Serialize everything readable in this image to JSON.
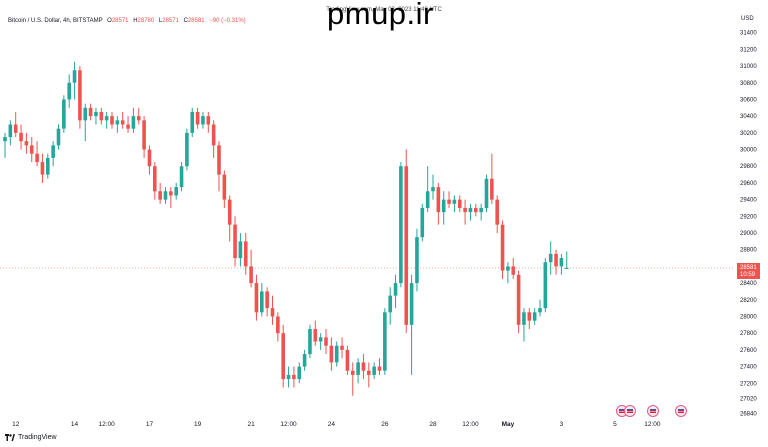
{
  "header": {
    "source_line": "TradingView.com, May 03, 2023 11:49 UTC",
    "watermark": "pmup.ir",
    "symbol": "Bitcoin / U.S. Dollar, 4h, BITSTAMP",
    "ohlc": {
      "o_label": "O",
      "o_value": "28571",
      "h_label": "H",
      "h_value": "28780",
      "l_label": "L",
      "l_value": "28571",
      "c_label": "C",
      "c_value": "28581",
      "change": "−90 (−0.31%)"
    },
    "currency": "USD"
  },
  "footer": {
    "brand": "TradingView"
  },
  "colors": {
    "up": "#26a69a",
    "down": "#ef5350",
    "priceline": "#f28b8b"
  },
  "chart_data": {
    "type": "candlestick",
    "y_axis": {
      "ticks": [
        26840,
        27020,
        27200,
        27400,
        27600,
        27800,
        28000,
        28200,
        28400,
        28600,
        28800,
        29000,
        29200,
        29400,
        29600,
        29800,
        30000,
        30200,
        30400,
        30600,
        30800,
        31000,
        31200,
        31400
      ],
      "ylim": [
        26760,
        31480
      ]
    },
    "x_axis": {
      "ticks": [
        {
          "label": "12",
          "index": 2
        },
        {
          "label": "14",
          "index": 13
        },
        {
          "label": "12:00",
          "index": 19
        },
        {
          "label": "17",
          "index": 27
        },
        {
          "label": "19",
          "index": 36
        },
        {
          "label": "21",
          "index": 46
        },
        {
          "label": "12:00",
          "index": 53
        },
        {
          "label": "24",
          "index": 61
        },
        {
          "label": "26",
          "index": 71
        },
        {
          "label": "28",
          "index": 80
        },
        {
          "label": "12:00",
          "index": 87
        },
        {
          "label": "May",
          "index": 94,
          "bold": true
        },
        {
          "label": "3",
          "index": 104
        },
        {
          "label": "5",
          "index": 114
        },
        {
          "label": "12:00",
          "index": 121
        }
      ]
    },
    "last_price": {
      "value": "28581",
      "countdown": "10:59",
      "y": 28581
    },
    "candles": [
      {
        "o": 30100,
        "h": 30200,
        "l": 29900,
        "c": 30150
      },
      {
        "o": 30150,
        "h": 30350,
        "l": 30050,
        "c": 30300
      },
      {
        "o": 30300,
        "h": 30450,
        "l": 30150,
        "c": 30200
      },
      {
        "o": 30200,
        "h": 30300,
        "l": 30000,
        "c": 30100
      },
      {
        "o": 30100,
        "h": 30200,
        "l": 29950,
        "c": 30050
      },
      {
        "o": 30050,
        "h": 30150,
        "l": 29850,
        "c": 29950
      },
      {
        "o": 29950,
        "h": 30100,
        "l": 29800,
        "c": 29850
      },
      {
        "o": 29850,
        "h": 29950,
        "l": 29600,
        "c": 29700
      },
      {
        "o": 29700,
        "h": 29950,
        "l": 29650,
        "c": 29900
      },
      {
        "o": 29900,
        "h": 30100,
        "l": 29800,
        "c": 30050
      },
      {
        "o": 30050,
        "h": 30300,
        "l": 30000,
        "c": 30250
      },
      {
        "o": 30250,
        "h": 30650,
        "l": 30200,
        "c": 30600
      },
      {
        "o": 30600,
        "h": 30900,
        "l": 30500,
        "c": 30800
      },
      {
        "o": 30800,
        "h": 31050,
        "l": 30600,
        "c": 30950
      },
      {
        "o": 30950,
        "h": 31000,
        "l": 30250,
        "c": 30350
      },
      {
        "o": 30350,
        "h": 30550,
        "l": 30100,
        "c": 30500
      },
      {
        "o": 30500,
        "h": 30550,
        "l": 30350,
        "c": 30400
      },
      {
        "o": 30400,
        "h": 30500,
        "l": 30300,
        "c": 30450
      },
      {
        "o": 30450,
        "h": 30500,
        "l": 30300,
        "c": 30350
      },
      {
        "o": 30350,
        "h": 30450,
        "l": 30250,
        "c": 30400
      },
      {
        "o": 30400,
        "h": 30450,
        "l": 30250,
        "c": 30300
      },
      {
        "o": 30300,
        "h": 30400,
        "l": 30200,
        "c": 30350
      },
      {
        "o": 30350,
        "h": 30450,
        "l": 30250,
        "c": 30300
      },
      {
        "o": 30300,
        "h": 30400,
        "l": 30200,
        "c": 30250
      },
      {
        "o": 30250,
        "h": 30500,
        "l": 30200,
        "c": 30400
      },
      {
        "o": 30400,
        "h": 30500,
        "l": 30300,
        "c": 30350
      },
      {
        "o": 30350,
        "h": 30400,
        "l": 29900,
        "c": 30000
      },
      {
        "o": 30000,
        "h": 30050,
        "l": 29700,
        "c": 29800
      },
      {
        "o": 29800,
        "h": 29850,
        "l": 29400,
        "c": 29500
      },
      {
        "o": 29500,
        "h": 29600,
        "l": 29350,
        "c": 29400
      },
      {
        "o": 29400,
        "h": 29550,
        "l": 29350,
        "c": 29500
      },
      {
        "o": 29500,
        "h": 29550,
        "l": 29300,
        "c": 29450
      },
      {
        "o": 29450,
        "h": 29600,
        "l": 29400,
        "c": 29550
      },
      {
        "o": 29550,
        "h": 29850,
        "l": 29500,
        "c": 29800
      },
      {
        "o": 29800,
        "h": 30250,
        "l": 29750,
        "c": 30200
      },
      {
        "o": 30200,
        "h": 30500,
        "l": 30150,
        "c": 30450
      },
      {
        "o": 30450,
        "h": 30500,
        "l": 30250,
        "c": 30300
      },
      {
        "o": 30300,
        "h": 30450,
        "l": 30250,
        "c": 30400
      },
      {
        "o": 30400,
        "h": 30450,
        "l": 30200,
        "c": 30300
      },
      {
        "o": 30300,
        "h": 30350,
        "l": 29900,
        "c": 30050
      },
      {
        "o": 30050,
        "h": 30100,
        "l": 29500,
        "c": 29700
      },
      {
        "o": 29700,
        "h": 29750,
        "l": 29300,
        "c": 29400
      },
      {
        "o": 29400,
        "h": 29450,
        "l": 28900,
        "c": 29100
      },
      {
        "o": 29100,
        "h": 29200,
        "l": 28600,
        "c": 28700
      },
      {
        "o": 28700,
        "h": 29000,
        "l": 28600,
        "c": 28900
      },
      {
        "o": 28900,
        "h": 29000,
        "l": 28500,
        "c": 28600
      },
      {
        "o": 28600,
        "h": 28800,
        "l": 28350,
        "c": 28400
      },
      {
        "o": 28400,
        "h": 28500,
        "l": 27950,
        "c": 28050
      },
      {
        "o": 28050,
        "h": 28400,
        "l": 28000,
        "c": 28300
      },
      {
        "o": 28300,
        "h": 28350,
        "l": 28000,
        "c": 28100
      },
      {
        "o": 28100,
        "h": 28250,
        "l": 27900,
        "c": 28000
      },
      {
        "o": 28000,
        "h": 28050,
        "l": 27700,
        "c": 27800
      },
      {
        "o": 27800,
        "h": 27900,
        "l": 27150,
        "c": 27250
      },
      {
        "o": 27250,
        "h": 27400,
        "l": 27150,
        "c": 27300
      },
      {
        "o": 27300,
        "h": 27400,
        "l": 27150,
        "c": 27250
      },
      {
        "o": 27250,
        "h": 27450,
        "l": 27200,
        "c": 27400
      },
      {
        "o": 27400,
        "h": 27600,
        "l": 27350,
        "c": 27550
      },
      {
        "o": 27550,
        "h": 27900,
        "l": 27500,
        "c": 27850
      },
      {
        "o": 27850,
        "h": 27950,
        "l": 27650,
        "c": 27700
      },
      {
        "o": 27700,
        "h": 27800,
        "l": 27600,
        "c": 27750
      },
      {
        "o": 27750,
        "h": 27850,
        "l": 27550,
        "c": 27650
      },
      {
        "o": 27650,
        "h": 27750,
        "l": 27350,
        "c": 27450
      },
      {
        "o": 27450,
        "h": 27700,
        "l": 27400,
        "c": 27650
      },
      {
        "o": 27650,
        "h": 27750,
        "l": 27500,
        "c": 27600
      },
      {
        "o": 27600,
        "h": 27650,
        "l": 27300,
        "c": 27350
      },
      {
        "o": 27350,
        "h": 27450,
        "l": 27050,
        "c": 27300
      },
      {
        "o": 27300,
        "h": 27500,
        "l": 27200,
        "c": 27450
      },
      {
        "o": 27450,
        "h": 27550,
        "l": 27250,
        "c": 27350
      },
      {
        "o": 27350,
        "h": 27450,
        "l": 27150,
        "c": 27300
      },
      {
        "o": 27300,
        "h": 27450,
        "l": 27250,
        "c": 27400
      },
      {
        "o": 27400,
        "h": 27500,
        "l": 27300,
        "c": 27350
      },
      {
        "o": 27350,
        "h": 28100,
        "l": 27300,
        "c": 28050
      },
      {
        "o": 28050,
        "h": 28350,
        "l": 27900,
        "c": 28250
      },
      {
        "o": 28250,
        "h": 28500,
        "l": 28100,
        "c": 28400
      },
      {
        "o": 28400,
        "h": 29850,
        "l": 28350,
        "c": 29800
      },
      {
        "o": 29800,
        "h": 30000,
        "l": 27800,
        "c": 27900
      },
      {
        "o": 27900,
        "h": 28500,
        "l": 27300,
        "c": 28400
      },
      {
        "o": 28400,
        "h": 29050,
        "l": 28300,
        "c": 28950
      },
      {
        "o": 28950,
        "h": 29350,
        "l": 28900,
        "c": 29300
      },
      {
        "o": 29300,
        "h": 29800,
        "l": 29250,
        "c": 29500
      },
      {
        "o": 29500,
        "h": 29700,
        "l": 29400,
        "c": 29550
      },
      {
        "o": 29550,
        "h": 29600,
        "l": 29100,
        "c": 29250
      },
      {
        "o": 29250,
        "h": 29500,
        "l": 29100,
        "c": 29400
      },
      {
        "o": 29400,
        "h": 29500,
        "l": 29300,
        "c": 29350
      },
      {
        "o": 29350,
        "h": 29450,
        "l": 29250,
        "c": 29400
      },
      {
        "o": 29400,
        "h": 29450,
        "l": 29250,
        "c": 29300
      },
      {
        "o": 29300,
        "h": 29400,
        "l": 29100,
        "c": 29250
      },
      {
        "o": 29250,
        "h": 29350,
        "l": 29150,
        "c": 29300
      },
      {
        "o": 29300,
        "h": 29350,
        "l": 29200,
        "c": 29250
      },
      {
        "o": 29250,
        "h": 29350,
        "l": 29150,
        "c": 29300
      },
      {
        "o": 29300,
        "h": 29700,
        "l": 29250,
        "c": 29650
      },
      {
        "o": 29650,
        "h": 29950,
        "l": 29350,
        "c": 29400
      },
      {
        "o": 29400,
        "h": 29450,
        "l": 29000,
        "c": 29100
      },
      {
        "o": 29100,
        "h": 29150,
        "l": 28450,
        "c": 28550
      },
      {
        "o": 28550,
        "h": 28650,
        "l": 28400,
        "c": 28600
      },
      {
        "o": 28600,
        "h": 28700,
        "l": 28450,
        "c": 28500
      },
      {
        "o": 28500,
        "h": 28550,
        "l": 27800,
        "c": 27900
      },
      {
        "o": 27900,
        "h": 28100,
        "l": 27700,
        "c": 28050
      },
      {
        "o": 28050,
        "h": 28100,
        "l": 27850,
        "c": 27950
      },
      {
        "o": 27950,
        "h": 28100,
        "l": 27900,
        "c": 28050
      },
      {
        "o": 28050,
        "h": 28200,
        "l": 28000,
        "c": 28100
      },
      {
        "o": 28100,
        "h": 28700,
        "l": 28050,
        "c": 28650
      },
      {
        "o": 28650,
        "h": 28900,
        "l": 28500,
        "c": 28750
      },
      {
        "o": 28750,
        "h": 28800,
        "l": 28500,
        "c": 28600
      },
      {
        "o": 28600,
        "h": 28750,
        "l": 28500,
        "c": 28700
      },
      {
        "o": 28571,
        "h": 28780,
        "l": 28571,
        "c": 28581
      }
    ]
  }
}
